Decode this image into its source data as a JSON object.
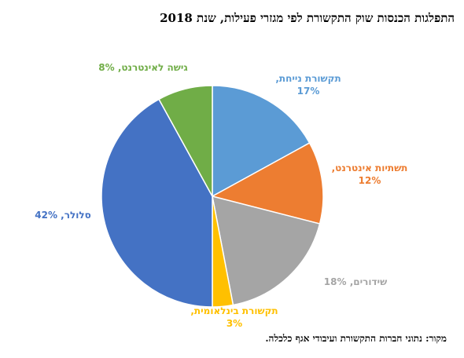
{
  "chart_data": {
    "type": "pie",
    "title": "התפלגות הכנסות שוק התקשורת לפי מגזרי פעילות, שנת 2018",
    "unit": "%",
    "slices": [
      {
        "name": "תקשורת נייחת",
        "value": 17,
        "label_line1": "תקשורת נייחת,",
        "label_line2": "17%",
        "color": "#5B9BD5"
      },
      {
        "name": "תשתיות אינטרנט",
        "value": 12,
        "label_line1": "תשתיות אינטרנט,",
        "label_line2": "12%",
        "color": "#ED7D31"
      },
      {
        "name": "שידורים",
        "value": 18,
        "label_line1": "שידורים, 18%",
        "label_line2": "",
        "color": "#A5A5A5"
      },
      {
        "name": "תקשורת בינלאומית",
        "value": 3,
        "label_line1": "תקשורת בינלאומית,",
        "label_line2": "3%",
        "color": "#FFC000"
      },
      {
        "name": "סלולר",
        "value": 42,
        "label_line1": "סלולר, 42%",
        "label_line2": "",
        "color": "#4472C4"
      },
      {
        "name": "גישה לאינטרנט",
        "value": 8,
        "label_line1": "גישה לאינטרנט, 8%",
        "label_line2": "",
        "color": "#70AD47"
      }
    ],
    "start_angle": "12 o'clock",
    "direction": "clockwise",
    "legend": "none (labels on slices)"
  },
  "source": "מקור: נתוני חברות התקשורת ועיבודי אגף כלכלה."
}
